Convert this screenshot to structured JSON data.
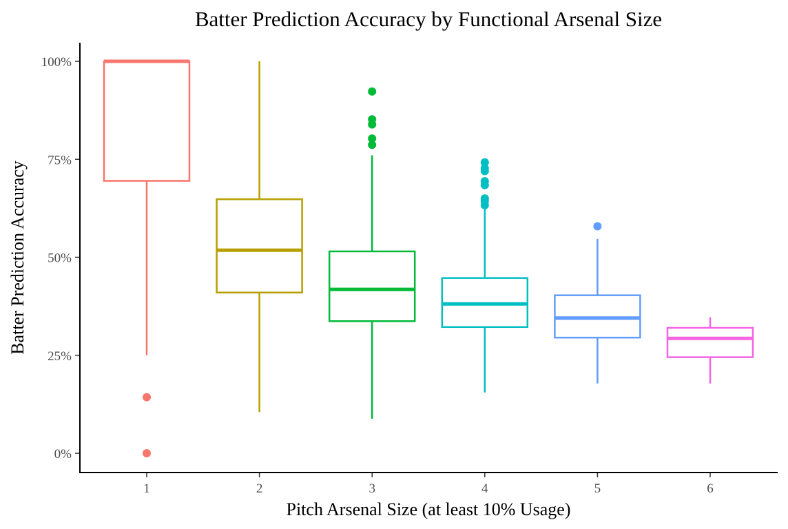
{
  "chart_data": {
    "type": "boxplot",
    "title": "Batter Prediction Accuracy by Functional Arsenal Size",
    "xlabel": "Pitch Arsenal Size (at least 10% Usage)",
    "ylabel": "Batter Prediction Accuracy",
    "categories": [
      "1",
      "2",
      "3",
      "4",
      "5",
      "6"
    ],
    "ylim": [
      -0.05,
      1.05
    ],
    "yticks": [
      0,
      0.25,
      0.5,
      0.75,
      1.0
    ],
    "ytick_labels": [
      "0%",
      "25%",
      "50%",
      "75%",
      "100%"
    ],
    "grid": false,
    "legend": "none",
    "boxes": [
      {
        "category": "1",
        "color": "#F8766D",
        "whisker_low": 0.25,
        "q1": 0.695,
        "median": 1.0,
        "q3": 1.0,
        "whisker_high": 1.0,
        "outliers": [
          0.143,
          0.0
        ]
      },
      {
        "category": "2",
        "color": "#B79F00",
        "whisker_low": 0.105,
        "q1": 0.41,
        "median": 0.518,
        "q3": 0.648,
        "whisker_high": 1.0,
        "outliers": []
      },
      {
        "category": "3",
        "color": "#00BA38",
        "whisker_low": 0.088,
        "q1": 0.337,
        "median": 0.418,
        "q3": 0.515,
        "whisker_high": 0.76,
        "outliers": [
          0.923,
          0.852,
          0.839,
          0.803,
          0.787
        ]
      },
      {
        "category": "4",
        "color": "#00BFC4",
        "whisker_low": 0.155,
        "q1": 0.322,
        "median": 0.381,
        "q3": 0.447,
        "whisker_high": 0.63,
        "outliers": [
          0.742,
          0.727,
          0.72,
          0.694,
          0.684,
          0.65,
          0.643,
          0.633
        ]
      },
      {
        "category": "5",
        "color": "#619CFF",
        "whisker_low": 0.178,
        "q1": 0.295,
        "median": 0.345,
        "q3": 0.403,
        "whisker_high": 0.547,
        "outliers": [
          0.579
        ]
      },
      {
        "category": "6",
        "color": "#F564E3",
        "whisker_low": 0.178,
        "q1": 0.245,
        "median": 0.293,
        "q3": 0.32,
        "whisker_high": 0.347,
        "outliers": []
      }
    ]
  }
}
